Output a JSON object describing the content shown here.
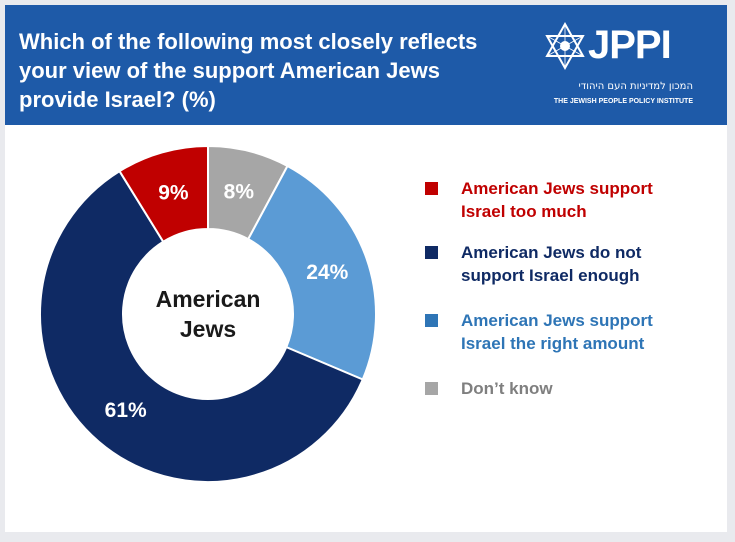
{
  "header": {
    "title": "Which of the following most closely reflects your view of the support American Jews provide Israel? (%)",
    "bg_color": "#1e5aa8"
  },
  "logo": {
    "text": "JPPI",
    "hebrew": "המכון למדיניות העם היהודי",
    "english": "THE JEWISH PEOPLE POLICY INSTITUTE",
    "icon": "star-of-david-icon"
  },
  "chart_data": {
    "type": "pie",
    "variant": "donut",
    "center_label": "American Jews",
    "center_lines": [
      "American",
      "Jews"
    ],
    "unit": "%",
    "start_angle_deg": 0,
    "direction": "clockwise",
    "legend_placement": "right",
    "slices": [
      {
        "label": "Don’t know",
        "value": 8,
        "display": "8%",
        "color": "#a6a6a6"
      },
      {
        "label": "American Jews support Israel the right amount",
        "value": 24,
        "display": "24%",
        "color": "#5b9bd5"
      },
      {
        "label": "American Jews do not support Israel enough",
        "value": 61,
        "display": "61%",
        "color": "#0f2a64"
      },
      {
        "label": "American Jews support Israel too much",
        "value": 9,
        "display": "9%",
        "color": "#c00000"
      }
    ],
    "legend": [
      {
        "lines": [
          "American Jews support",
          "Israel too much"
        ],
        "color": "#c00000",
        "text_color": "#c00000"
      },
      {
        "lines": [
          "American Jews do not",
          "support Israel enough"
        ],
        "color": "#0f2a64",
        "text_color": "#0f2a64"
      },
      {
        "lines": [
          "American Jews support",
          "Israel the right amount"
        ],
        "color": "#2e75b6",
        "text_color": "#2e75b6"
      },
      {
        "lines": [
          "Don’t know"
        ],
        "color": "#a6a6a6",
        "text_color": "#7f7f7f"
      }
    ]
  }
}
